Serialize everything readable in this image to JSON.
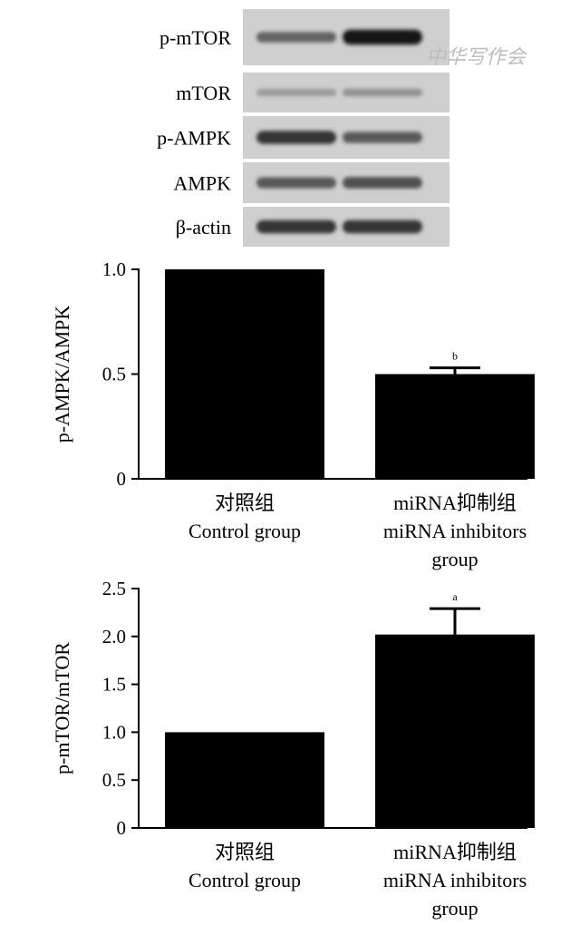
{
  "blot": {
    "bands": [
      {
        "label": "p-mTOR",
        "lane1": 0.55,
        "lane2": 0.95
      },
      {
        "label": "mTOR",
        "lane1": 0.25,
        "lane2": 0.3
      },
      {
        "label": "p-AMPK",
        "lane1": 0.8,
        "lane2": 0.6
      },
      {
        "label": "AMPK",
        "lane1": 0.6,
        "lane2": 0.65
      },
      {
        "label": "β-actin",
        "lane1": 0.8,
        "lane2": 0.8
      }
    ]
  },
  "watermark": {
    "text": "中华写作会"
  },
  "chart_data": [
    {
      "type": "bar",
      "ylabel": "p-AMPK/AMPK",
      "ylim": [
        0,
        1.0
      ],
      "yticks": [
        "0",
        "0.5",
        "1.0"
      ],
      "categories": [
        [
          "对照组",
          "Control group"
        ],
        [
          "miRNA抑制组",
          "miRNA inhibitors",
          "group"
        ]
      ],
      "values": [
        1.0,
        0.5
      ],
      "errors": [
        0,
        0.03
      ],
      "significance": [
        "",
        "b"
      ]
    },
    {
      "type": "bar",
      "ylabel": "p-mTOR/mTOR",
      "ylim": [
        0,
        2.5
      ],
      "yticks": [
        "0",
        "0.5",
        "1.0",
        "1.5",
        "2.0",
        "2.5"
      ],
      "categories": [
        [
          "对照组",
          "Control group"
        ],
        [
          "miRNA抑制组",
          "miRNA inhibitors",
          "group"
        ]
      ],
      "values": [
        1.0,
        2.02
      ],
      "errors": [
        0,
        0.27
      ],
      "significance": [
        "",
        "a"
      ]
    }
  ]
}
